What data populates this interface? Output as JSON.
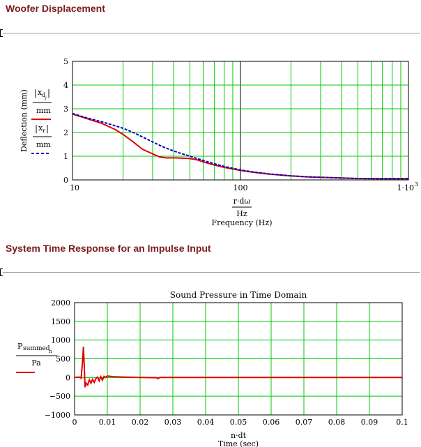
{
  "sections": [
    {
      "title": "Woofer Displacement"
    },
    {
      "title": "System Time Response for an Impulse Input"
    }
  ],
  "colors": {
    "grid": "#00c800",
    "frame": "#000000",
    "series_red": "#e00000",
    "series_blue": "#0000c8",
    "title_text": "#7a1c1c"
  },
  "chart_data": [
    {
      "type": "line",
      "title": "",
      "x_scale": "log",
      "xlim": [
        10,
        1000
      ],
      "ylim": [
        0,
        5
      ],
      "grid": true,
      "x_ticks": [
        "10",
        "100",
        "1·10"
      ],
      "x_tick_exponent": "3",
      "y_ticks": [
        "0",
        "1",
        "2",
        "3",
        "4",
        "5"
      ],
      "xlabel": {
        "expr": "r·dω",
        "unit": "Hz",
        "caption": "Frequency (Hz)"
      },
      "ylabel": {
        "caption": "Deflection (mm)",
        "legend": [
          {
            "expr": "x",
            "sub": "d",
            "subsub": "r",
            "unit": "mm",
            "style": "solid",
            "color": "#e00000"
          },
          {
            "expr": "x",
            "sub": "r",
            "unit": "mm",
            "style": "dashed",
            "color": "#0000c8"
          }
        ]
      },
      "series": [
        {
          "style": "solid",
          "color": "#e00000",
          "x": [
            10,
            12,
            15,
            18,
            20,
            23,
            26,
            30,
            33,
            36,
            40,
            45,
            50,
            55,
            60,
            70,
            80,
            100,
            120,
            150,
            200,
            250,
            300,
            400,
            500,
            700,
            1000
          ],
          "y": [
            2.78,
            2.6,
            2.38,
            2.12,
            1.92,
            1.6,
            1.3,
            1.1,
            0.97,
            0.93,
            0.93,
            0.92,
            0.9,
            0.85,
            0.76,
            0.63,
            0.53,
            0.4,
            0.32,
            0.24,
            0.17,
            0.13,
            0.11,
            0.08,
            0.06,
            0.05,
            0.05
          ]
        },
        {
          "style": "dashed",
          "color": "#0000c8",
          "x": [
            10,
            12,
            15,
            18,
            20,
            23,
            26,
            30,
            35,
            40,
            45,
            50,
            60,
            70,
            80,
            100,
            120,
            150,
            200,
            250,
            300,
            400,
            500,
            700,
            1000
          ],
          "y": [
            2.8,
            2.63,
            2.45,
            2.28,
            2.18,
            2.0,
            1.82,
            1.6,
            1.38,
            1.22,
            1.1,
            1.0,
            0.82,
            0.68,
            0.57,
            0.42,
            0.33,
            0.25,
            0.17,
            0.13,
            0.11,
            0.08,
            0.06,
            0.05,
            0.05
          ]
        }
      ]
    },
    {
      "type": "line",
      "title": "Sound Pressure in Time Domain",
      "xlim": [
        0,
        0.1
      ],
      "ylim": [
        -1000,
        2000
      ],
      "grid": true,
      "x_ticks": [
        "0",
        "0.01",
        "0.02",
        "0.03",
        "0.04",
        "0.05",
        "0.06",
        "0.07",
        "0.08",
        "0.09",
        "0.1"
      ],
      "y_ticks": [
        "−1000",
        "−500",
        "0",
        "500",
        "1000",
        "1500",
        "2000"
      ],
      "xlabel": {
        "expr": "n·dt",
        "caption": "Time (sec)"
      },
      "ylabel": {
        "expr": "P",
        "sub": "summed",
        "subsub": "n",
        "unit": "Pa",
        "color": "#e00000"
      },
      "series": [
        {
          "style": "solid",
          "color": "#e00000",
          "x": [
            0,
            0.0015,
            0.002,
            0.0024,
            0.0027,
            0.003,
            0.0032,
            0.0035,
            0.004,
            0.0045,
            0.005,
            0.0055,
            0.006,
            0.0065,
            0.007,
            0.0075,
            0.008,
            0.0085,
            0.009,
            0.0095,
            0.01,
            0.012,
            0.015,
            0.02,
            0.025,
            0.0255,
            0.026,
            0.03,
            0.04,
            0.06,
            0.08,
            0.1
          ],
          "y": [
            0,
            10,
            -20,
            400,
            820,
            200,
            -260,
            -150,
            -200,
            -60,
            -150,
            -50,
            -130,
            -30,
            10,
            -90,
            20,
            -70,
            30,
            0,
            40,
            20,
            10,
            0,
            -5,
            -30,
            0,
            0,
            0,
            0,
            0,
            0
          ]
        }
      ]
    }
  ]
}
